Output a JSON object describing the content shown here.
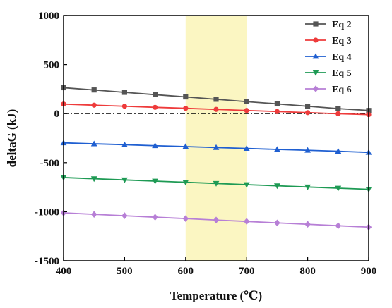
{
  "chart_data": {
    "type": "line",
    "xlabel": "Temperature (℃)",
    "ylabel": "deltaG (kJ)",
    "xlim": [
      400,
      900
    ],
    "ylim": [
      -1500,
      1000
    ],
    "x_ticks": [
      400,
      500,
      600,
      700,
      800,
      900
    ],
    "y_ticks": [
      1000,
      500,
      0,
      -500,
      -1000,
      -1500
    ],
    "x_tick_labels": [
      "400",
      "500",
      "600",
      "700",
      "800",
      "900"
    ],
    "y_tick_labels": [
      "1000",
      "500",
      "0",
      "-500",
      "-1000",
      "-1500"
    ],
    "highlight_band": {
      "x_from": 600,
      "x_to": 700,
      "color": "#fbf6c2"
    },
    "zero_reference_line": {
      "y": 0,
      "style": "dash-dot",
      "color": "#000000"
    },
    "legend_position": "top-right",
    "grid": false,
    "x": [
      400,
      450,
      500,
      550,
      600,
      650,
      700,
      750,
      800,
      850,
      900
    ],
    "series": [
      {
        "name": "Eq 2",
        "color": "#555555",
        "marker": "square",
        "values": [
          264,
          241,
          217,
          193,
          170,
          146,
          122,
          99,
          75,
          51,
          32
        ]
      },
      {
        "name": "Eq 3",
        "color": "#ee3b3b",
        "marker": "circle",
        "values": [
          97,
          86,
          75,
          64,
          54,
          43,
          32,
          21,
          10,
          -1,
          -10
        ]
      },
      {
        "name": "Eq 4",
        "color": "#1f5fd1",
        "marker": "triangle-up",
        "values": [
          -298,
          -308,
          -317,
          -327,
          -336,
          -346,
          -355,
          -365,
          -374,
          -384,
          -395
        ]
      },
      {
        "name": "Eq 5",
        "color": "#1e9a54",
        "marker": "triangle-down",
        "values": [
          -652,
          -664,
          -676,
          -688,
          -700,
          -712,
          -724,
          -736,
          -748,
          -760,
          -772
        ]
      },
      {
        "name": "Eq 6",
        "color": "#b77fd6",
        "marker": "diamond",
        "values": [
          -1012,
          -1027,
          -1041,
          -1056,
          -1070,
          -1085,
          -1099,
          -1114,
          -1128,
          -1143,
          -1157
        ]
      }
    ]
  }
}
